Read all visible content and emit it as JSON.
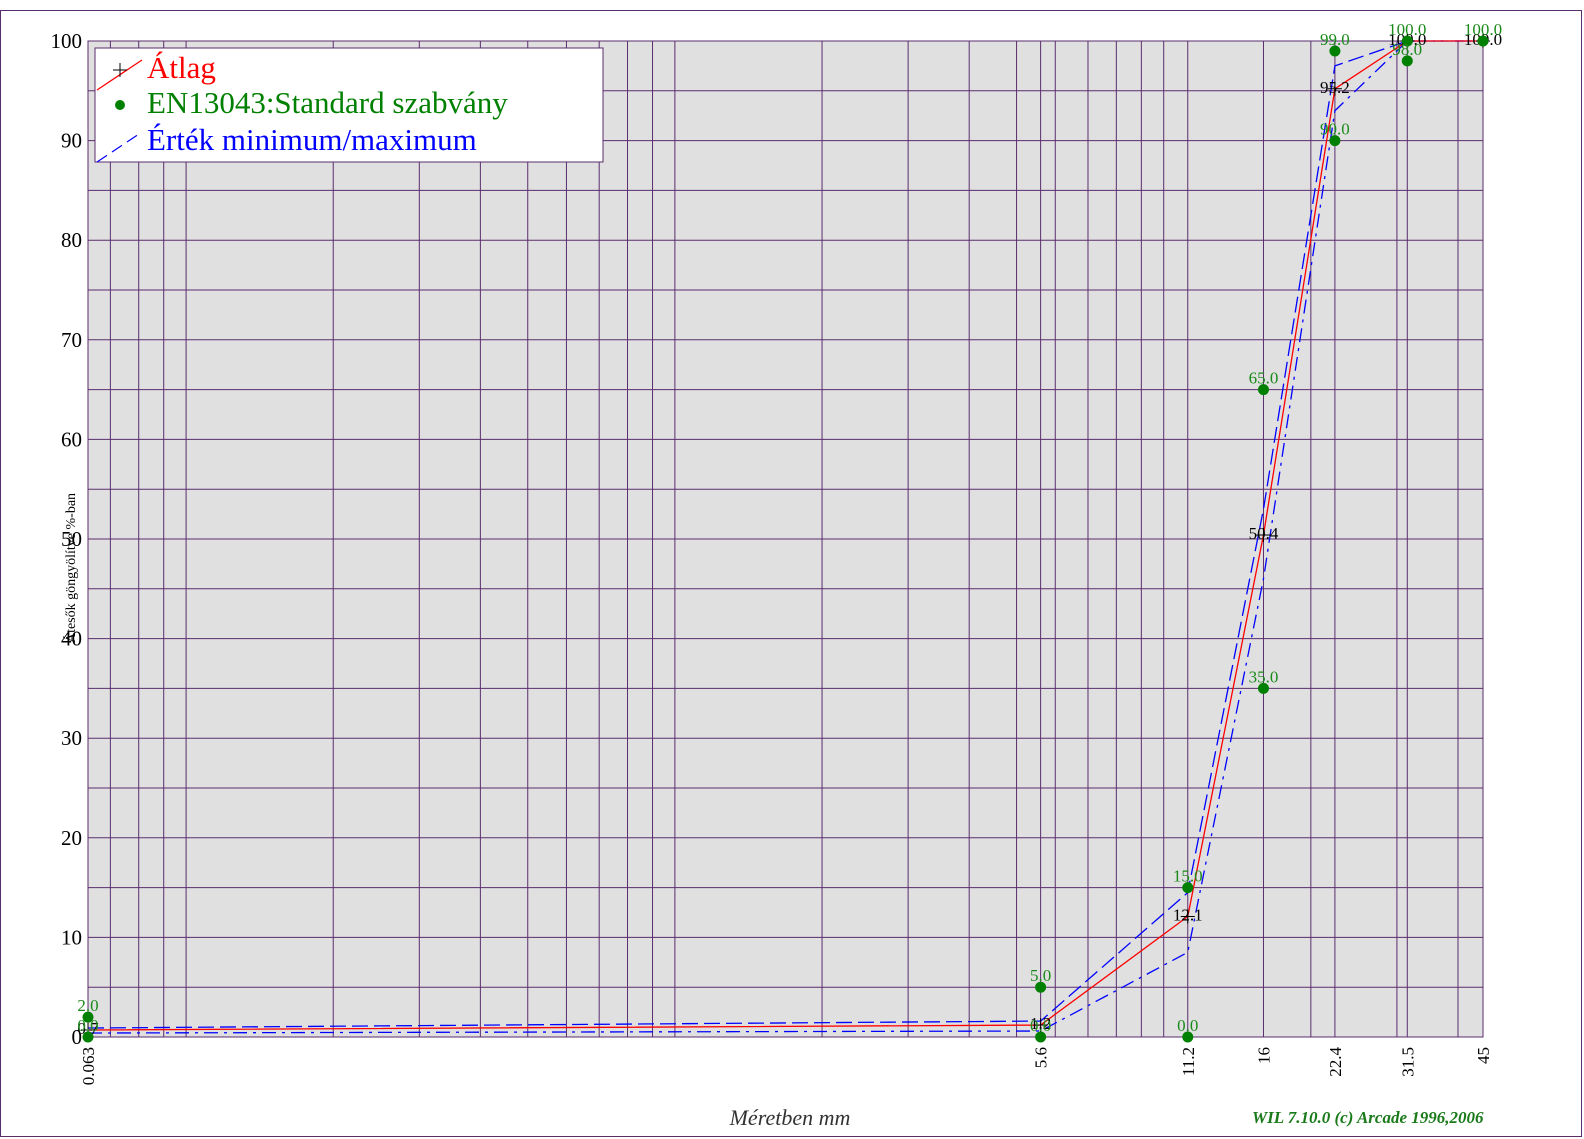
{
  "chart_data": {
    "type": "line",
    "xlabel": "Méretben mm",
    "ylabel": "Átesők göngyölítve %-ban",
    "credit": "WIL 7.10.0 (c) Arcade 1996,2006",
    "xscale": "log",
    "ylim": [
      0,
      100
    ],
    "yticks": [
      "0",
      "10",
      "20",
      "30",
      "40",
      "50",
      "60",
      "70",
      "80",
      "90",
      "100"
    ],
    "xticks": [
      "0.063",
      "5.6",
      "11.2",
      "16",
      "22.4",
      "31.5",
      "45"
    ],
    "grid": true,
    "legend_position": "top-left",
    "legend": [
      {
        "label": "Átlag",
        "color": "#ff0000",
        "marker": "plus"
      },
      {
        "label": "EN13043:Standard szabvány",
        "color": "#008000",
        "marker": "dot"
      },
      {
        "label": "Érték minimum/maximum",
        "color": "#0000ff",
        "marker": "dash"
      }
    ],
    "series": [
      {
        "name": "Átlag",
        "x": [
          0.063,
          5.6,
          11.2,
          16,
          22.4,
          31.5,
          45
        ],
        "y": [
          0.7,
          1.2,
          12.1,
          50.4,
          95.2,
          100.0,
          100.0
        ],
        "labels": [
          "0.7",
          "1.2",
          "12.1",
          "50.4",
          "95.2",
          "100.0",
          "100.0"
        ]
      },
      {
        "name": "EN13043:Standard szabvány",
        "points": [
          {
            "x": 0.063,
            "y": 2.0,
            "label": "2.0"
          },
          {
            "x": 0.063,
            "y": 0.0,
            "label": "0.0"
          },
          {
            "x": 5.6,
            "y": 5.0,
            "label": "5.0"
          },
          {
            "x": 5.6,
            "y": 0.0,
            "label": "0.0"
          },
          {
            "x": 11.2,
            "y": 15.0,
            "label": "15.0"
          },
          {
            "x": 11.2,
            "y": 0.0,
            "label": "0.0"
          },
          {
            "x": 16,
            "y": 65.0,
            "label": "65.0"
          },
          {
            "x": 16,
            "y": 35.0,
            "label": "35.0"
          },
          {
            "x": 22.4,
            "y": 99.0,
            "label": "99.0"
          },
          {
            "x": 22.4,
            "y": 90.0,
            "label": "90.0"
          },
          {
            "x": 31.5,
            "y": 100.0,
            "label": "100.0"
          },
          {
            "x": 31.5,
            "y": 98.0,
            "label": "98.0"
          },
          {
            "x": 45,
            "y": 100.0,
            "label": "100.0"
          }
        ]
      },
      {
        "name": "Érték minimum/maximum",
        "min": [
          0.4,
          0.6,
          8.5,
          46.0,
          93.0,
          100.0,
          100.0
        ],
        "max": [
          0.9,
          1.6,
          14.5,
          53.0,
          97.5,
          100.0,
          100.0
        ]
      }
    ],
    "colors": {
      "plot_bg": "#e0e0e0",
      "grid": "#5a2d6e"
    }
  }
}
